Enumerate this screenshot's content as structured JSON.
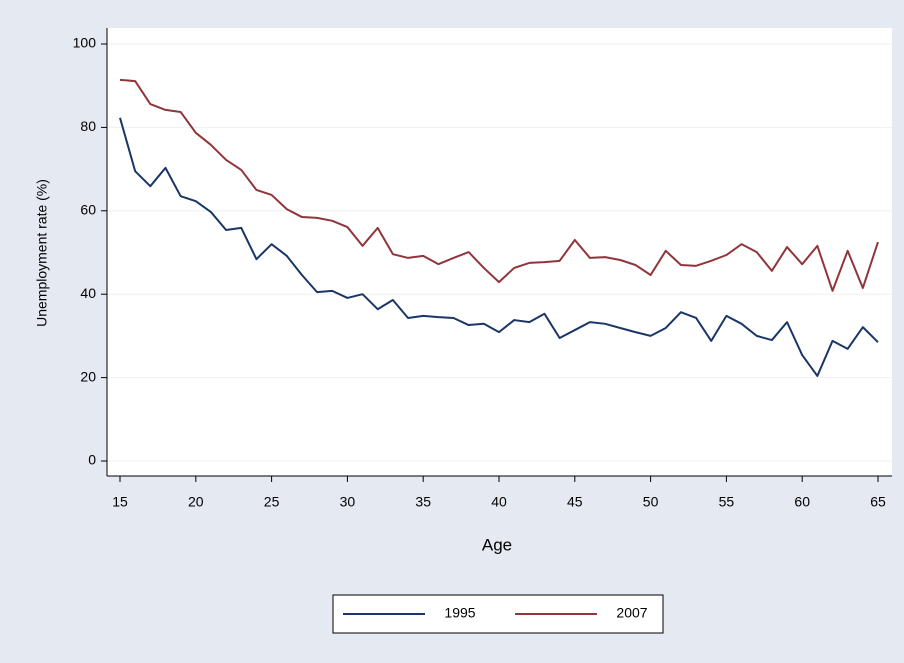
{
  "chart_data": {
    "type": "line",
    "x_label": "Age",
    "y_label": "Unemployment rate (%)",
    "x": [
      15,
      16,
      17,
      18,
      19,
      20,
      21,
      22,
      23,
      24,
      25,
      26,
      27,
      28,
      29,
      30,
      31,
      32,
      33,
      34,
      35,
      36,
      37,
      38,
      39,
      40,
      41,
      42,
      43,
      44,
      45,
      46,
      47,
      48,
      49,
      50,
      51,
      52,
      53,
      54,
      55,
      56,
      57,
      58,
      59,
      60,
      61,
      62,
      63,
      64,
      65
    ],
    "series": [
      {
        "name": "1995",
        "color": "#1a3668",
        "values": [
          82.3,
          69.5,
          65.9,
          70.3,
          63.5,
          62.3,
          59.7,
          55.4,
          55.9,
          48.4,
          52,
          49.2,
          44.6,
          40.5,
          40.8,
          39.1,
          40,
          36.4,
          38.6,
          34.3,
          34.8,
          34.5,
          34.3,
          32.6,
          32.9,
          30.9,
          33.8,
          33.3,
          35.3,
          29.5,
          31.4,
          33.3,
          32.9,
          31.9,
          30.9,
          30,
          31.9,
          35.7,
          34.3,
          28.8,
          34.8,
          32.9,
          30,
          29,
          33.3,
          25.4,
          20.4,
          28.8,
          26.9,
          32.1,
          28.5
        ]
      },
      {
        "name": "2007",
        "color": "#90353b",
        "values": [
          91.4,
          91.1,
          85.6,
          84.2,
          83.7,
          78.7,
          75.8,
          72.2,
          69.8,
          65,
          63.8,
          60.4,
          58.5,
          58.3,
          57.6,
          56.1,
          51.6,
          55.9,
          49.6,
          48.7,
          49.2,
          47.2,
          48.7,
          50.1,
          46.3,
          42.9,
          46.3,
          47.5,
          47.7,
          48,
          53,
          48.7,
          48.9,
          48.2,
          47,
          44.6,
          50.4,
          47,
          46.8,
          48,
          49.4,
          52,
          50.1,
          45.6,
          51.3,
          47.2,
          51.6,
          40.8,
          50.4,
          41.5,
          52.5
        ]
      }
    ],
    "xlim": [
      15,
      65
    ],
    "xticks": [
      15,
      20,
      25,
      30,
      35,
      40,
      45,
      50,
      55,
      60,
      65
    ],
    "ylim": [
      0,
      100
    ],
    "yticks": [
      0,
      20,
      40,
      60,
      80,
      100
    ],
    "grid": true,
    "legend": "bottom"
  }
}
